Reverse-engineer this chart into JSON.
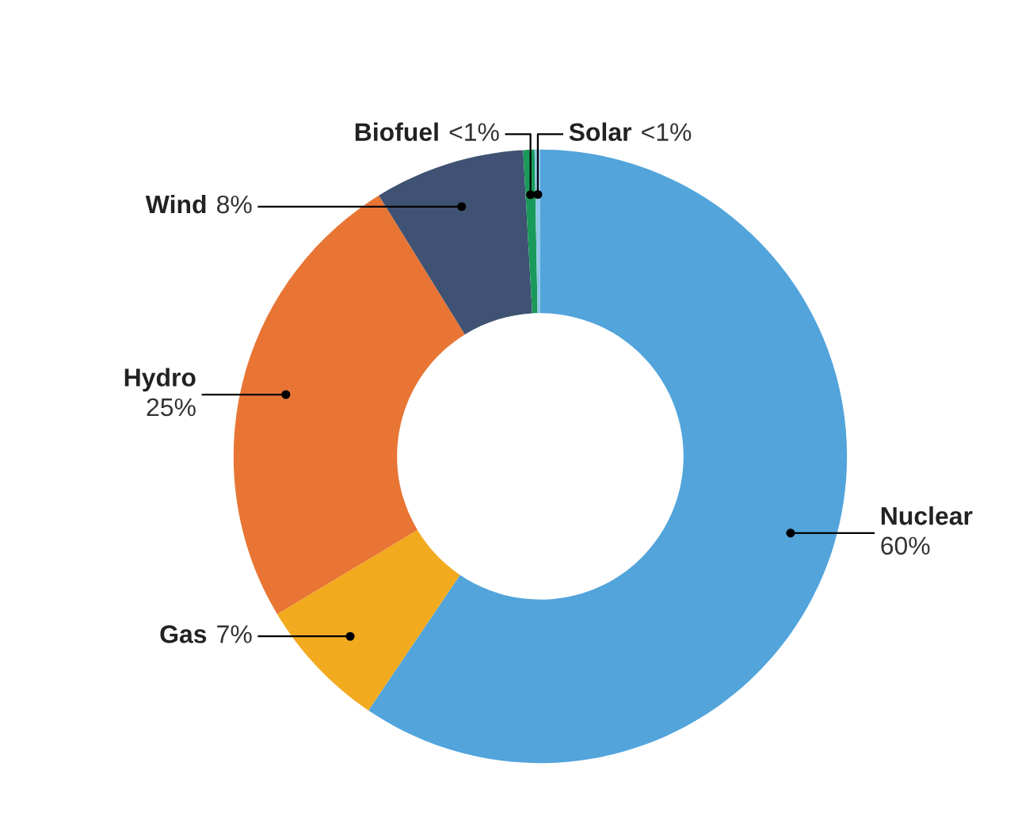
{
  "chart_data": {
    "type": "donut",
    "categories": [
      "Nuclear",
      "Gas",
      "Hydro",
      "Wind",
      "Biofuel",
      "Solar"
    ],
    "values": [
      60,
      7,
      25,
      8,
      0.6,
      0.3
    ],
    "value_labels": [
      "60%",
      "7%",
      "25%",
      "8%",
      "<1%",
      "<1%"
    ],
    "colors": [
      "#52a4db",
      "#f2aa1f",
      "#e87534",
      "#3f5273",
      "#1a9a5a",
      "#8fc8e8"
    ],
    "legend": false
  }
}
